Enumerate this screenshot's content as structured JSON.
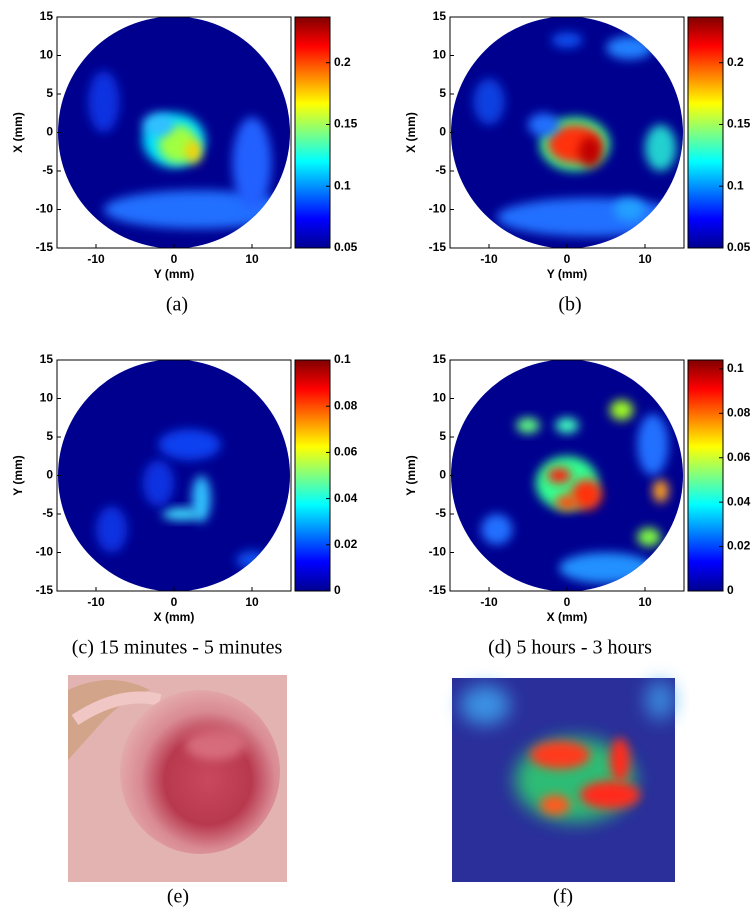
{
  "panels": [
    {
      "xlabel": "Y (mm)",
      "ylabel": "X (mm)",
      "xlim": [
        -15,
        15
      ],
      "ylim": [
        -15,
        15
      ],
      "xticks": [
        -10,
        0,
        10
      ],
      "yticks": [
        15,
        10,
        5,
        0,
        -5,
        -10,
        -15
      ],
      "colorbar": {
        "lim": [
          0.05,
          0.237
        ],
        "ticks": [
          0.2,
          0.15,
          0.1,
          0.05
        ]
      },
      "caption": "(a)"
    },
    {
      "xlabel": "Y (mm)",
      "ylabel": "X (mm)",
      "xlim": [
        -15,
        15
      ],
      "ylim": [
        -15,
        15
      ],
      "xticks": [
        -10,
        0,
        10
      ],
      "yticks": [
        15,
        10,
        5,
        0,
        -5,
        -10,
        -15
      ],
      "colorbar": {
        "lim": [
          0.05,
          0.237
        ],
        "ticks": [
          0.2,
          0.15,
          0.1,
          0.05
        ]
      },
      "caption": "(b)"
    },
    {
      "xlabel": "X (mm)",
      "ylabel": "Y (mm)",
      "xlim": [
        -15,
        15
      ],
      "ylim": [
        -15,
        15
      ],
      "xticks": [
        -10,
        0,
        10
      ],
      "yticks": [
        15,
        10,
        5,
        0,
        -5,
        -10,
        -15
      ],
      "colorbar": {
        "lim": [
          0,
          0.1
        ],
        "ticks": [
          0.1,
          0.08,
          0.06,
          0.04,
          0.02,
          0
        ]
      },
      "caption": "(c) 15 minutes - 5 minutes"
    },
    {
      "xlabel": "X (mm)",
      "ylabel": "Y (mm)",
      "xlim": [
        -15,
        15
      ],
      "ylim": [
        -15,
        15
      ],
      "xticks": [
        -10,
        0,
        10
      ],
      "yticks": [
        15,
        10,
        5,
        0,
        -5,
        -10,
        -15
      ],
      "colorbar": {
        "lim": [
          0,
          0.104
        ],
        "ticks": [
          0.1,
          0.08,
          0.06,
          0.04,
          0.02,
          0
        ]
      },
      "caption": "(d) 5 hours - 3 hours"
    }
  ],
  "photos": [
    {
      "caption": "(e)"
    },
    {
      "caption": "(f)"
    }
  ]
}
